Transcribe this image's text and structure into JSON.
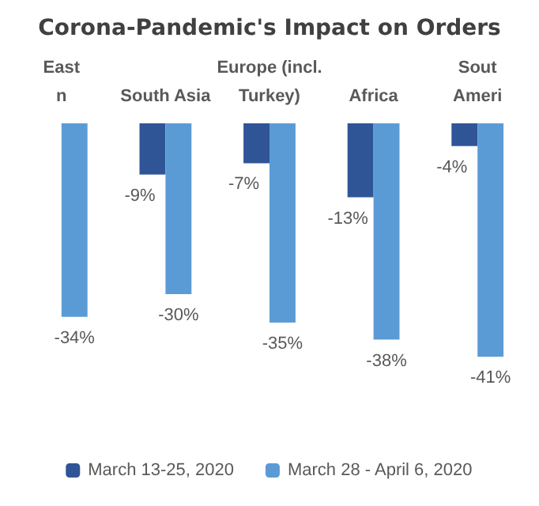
{
  "chart_data": {
    "type": "bar",
    "title": "Corona-Pandemic's Impact on Orders",
    "categories": [
      "East\nn",
      "South Asia",
      "Europe (incl.\nTurkey)",
      "Africa",
      "Sout\nAmeri"
    ],
    "series": [
      {
        "name": "March 13-25, 2020",
        "color": "#2f5597",
        "values": [
          null,
          -9,
          -7,
          -13,
          -4
        ],
        "value_labels": [
          null,
          "-9%",
          "-7%",
          "-13%",
          "-4%"
        ]
      },
      {
        "name": "March 28 - April 6, 2020",
        "color": "#5b9bd5",
        "values": [
          -34,
          -30,
          -35,
          -38,
          -41
        ],
        "value_labels": [
          "-34%",
          "-30%",
          "-35%",
          "-38%",
          "-41%"
        ]
      }
    ],
    "tick_labels": "x",
    "legend": "bottom"
  }
}
